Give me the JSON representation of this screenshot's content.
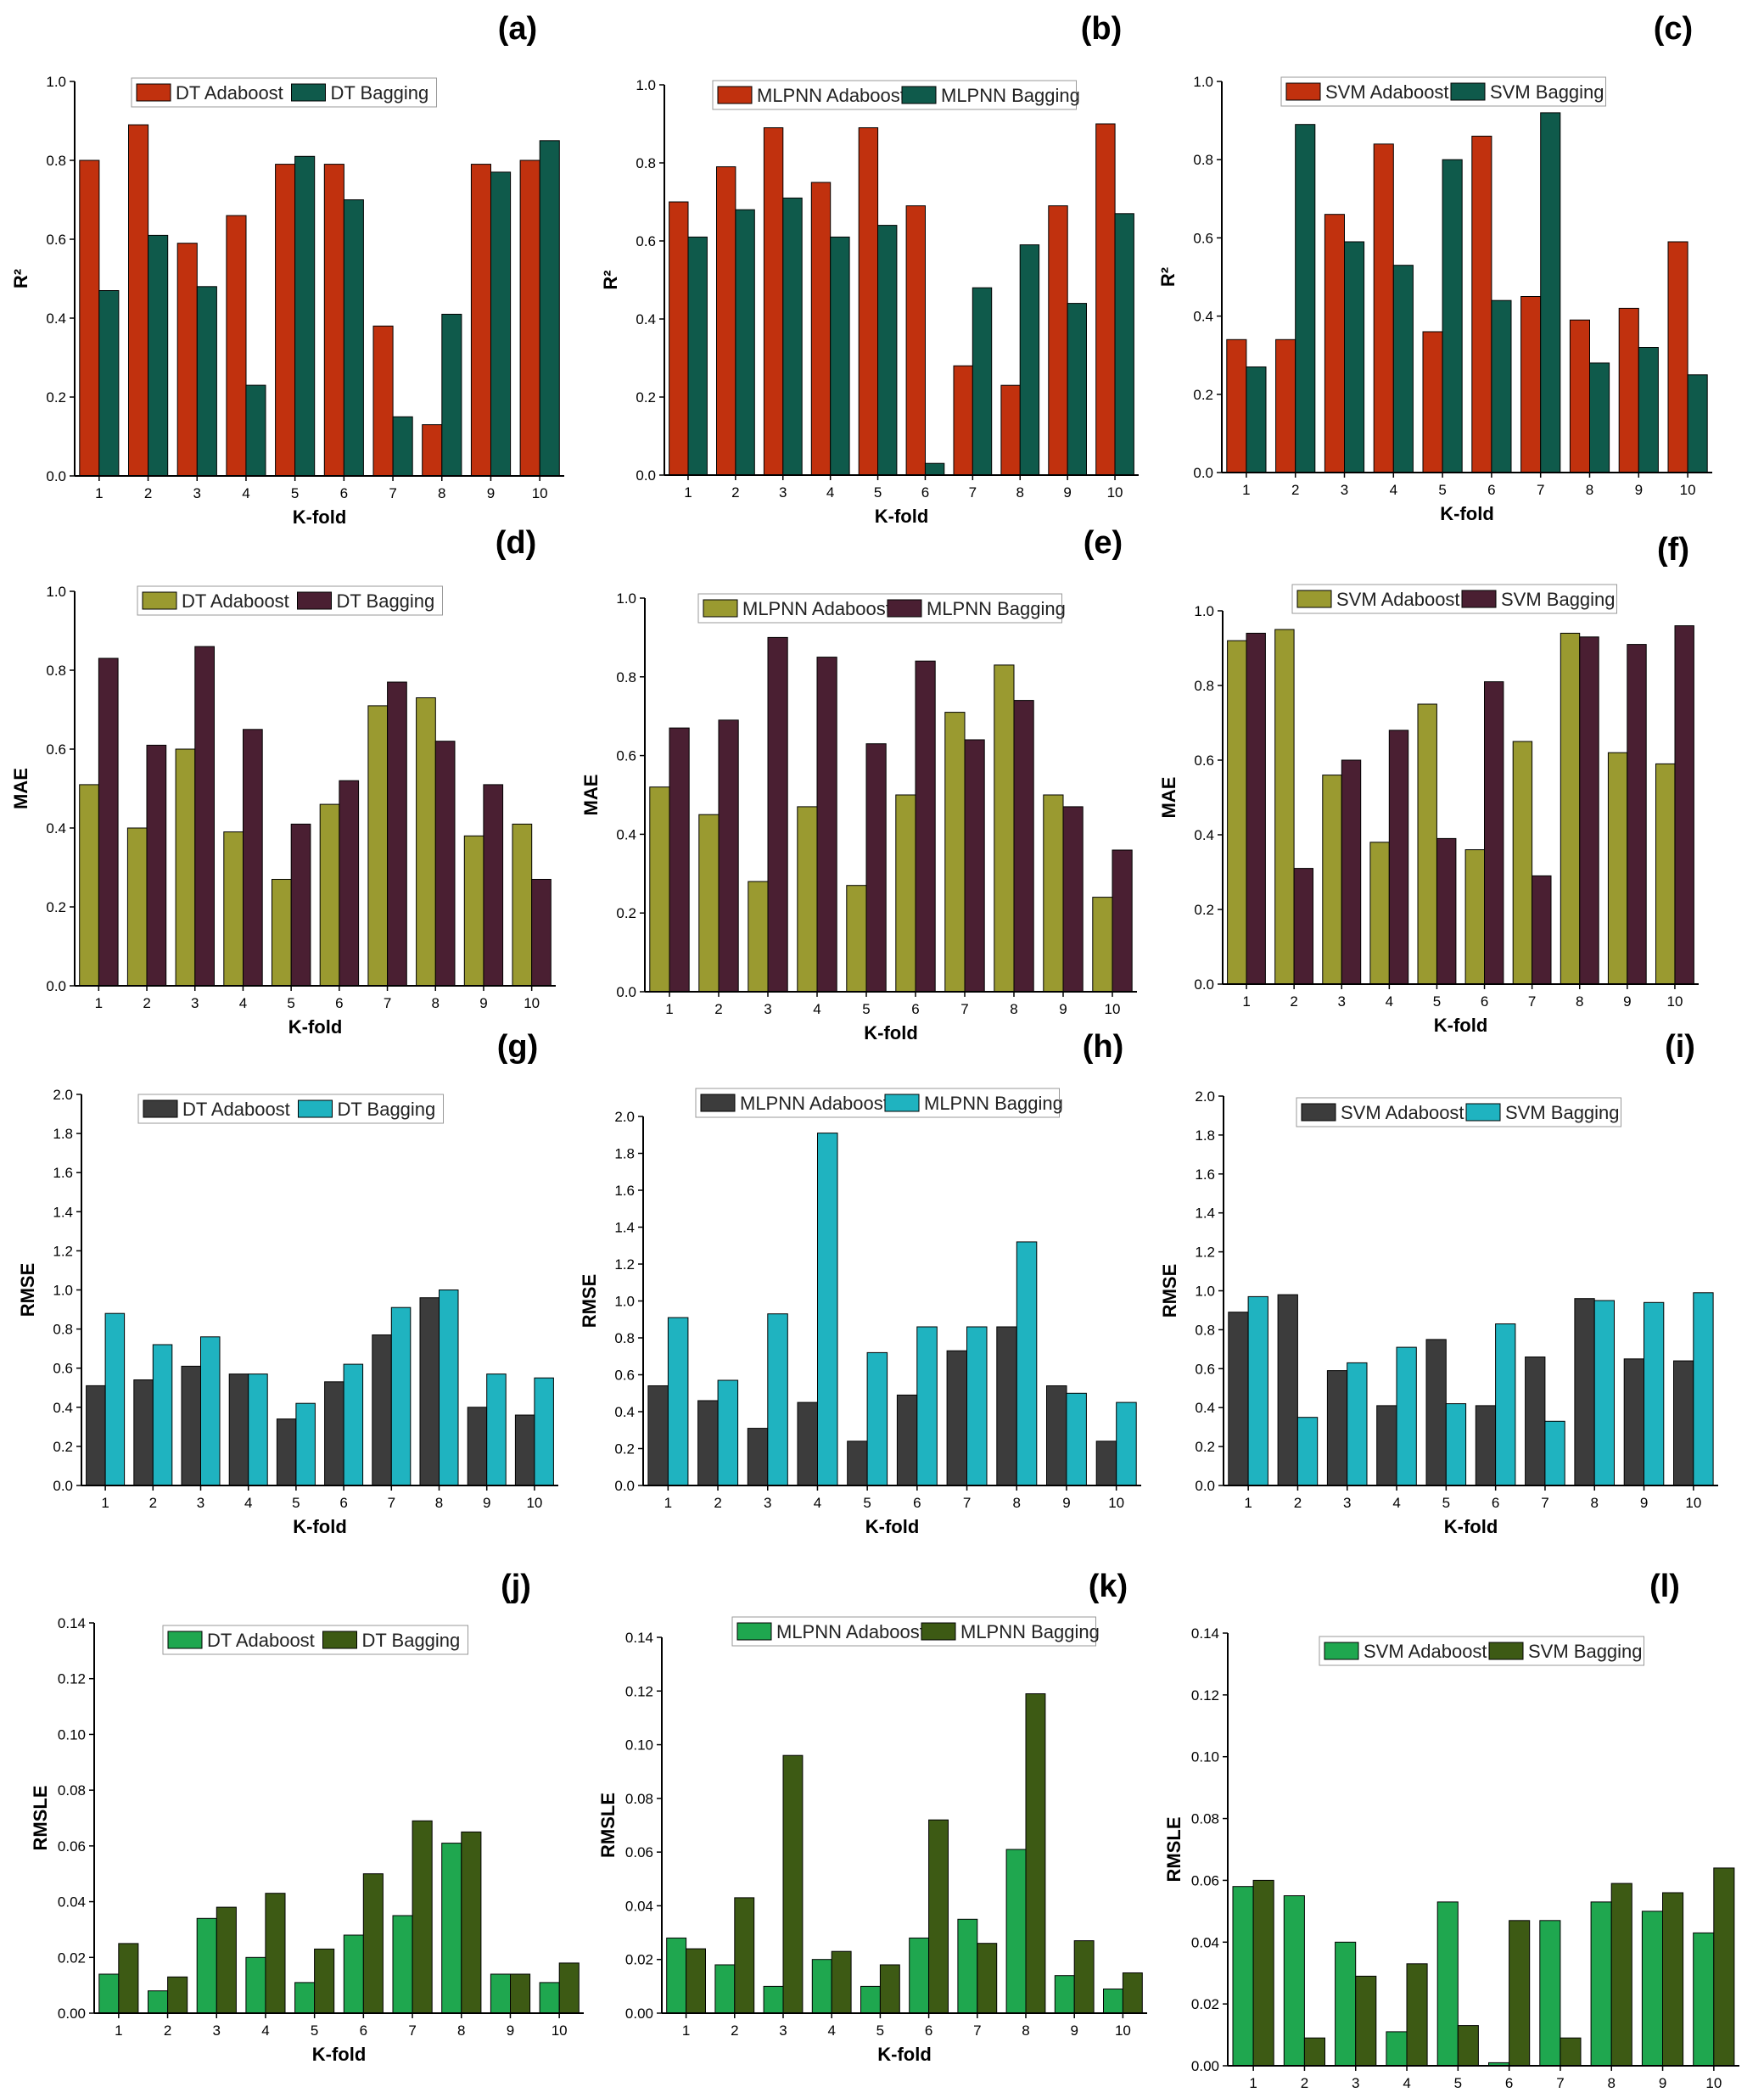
{
  "colors": {
    "r2_adaboost": "#c1310e",
    "r2_bagging": "#0f5a4b",
    "mae_adaboost": "#9a9a30",
    "mae_bagging": "#4a1f32",
    "rmse_adaboost": "#3c3c3c",
    "rmse_bagging": "#1fb3c0",
    "rmsle_adaboost": "#1fa74f",
    "rmsle_bagging": "#3d5a14"
  },
  "chart_data": [
    {
      "id": "a",
      "panel_label": "(a)",
      "type": "bar",
      "metric": "r2",
      "xlabel": "K-fold",
      "ylabel": "R²",
      "categories": [
        "1",
        "2",
        "3",
        "4",
        "5",
        "6",
        "7",
        "8",
        "9",
        "10"
      ],
      "ylim": [
        0,
        1.0
      ],
      "yticks": [
        "0.0",
        "0.2",
        "0.4",
        "0.6",
        "0.8",
        "1.0"
      ],
      "series": [
        {
          "name": "DT Adaboost",
          "values": [
            0.8,
            0.89,
            0.59,
            0.66,
            0.79,
            0.79,
            0.38,
            0.13,
            0.79,
            0.8
          ]
        },
        {
          "name": "DT Bagging",
          "values": [
            0.47,
            0.61,
            0.48,
            0.23,
            0.81,
            0.7,
            0.15,
            0.41,
            0.77,
            0.85
          ]
        }
      ]
    },
    {
      "id": "b",
      "panel_label": "(b)",
      "type": "bar",
      "metric": "r2",
      "xlabel": "K-fold",
      "ylabel": "R²",
      "categories": [
        "1",
        "2",
        "3",
        "4",
        "5",
        "6",
        "7",
        "8",
        "9",
        "10"
      ],
      "ylim": [
        0,
        1.0
      ],
      "yticks": [
        "0.0",
        "0.2",
        "0.4",
        "0.6",
        "0.8",
        "1.0"
      ],
      "series": [
        {
          "name": "MLPNN Adaboost",
          "values": [
            0.7,
            0.79,
            0.89,
            0.75,
            0.89,
            0.69,
            0.28,
            0.23,
            0.69,
            0.9
          ]
        },
        {
          "name": "MLPNN Bagging",
          "values": [
            0.61,
            0.68,
            0.71,
            0.61,
            0.64,
            0.03,
            0.48,
            0.59,
            0.44,
            0.67
          ]
        }
      ]
    },
    {
      "id": "c",
      "panel_label": "(c)",
      "type": "bar",
      "metric": "r2",
      "xlabel": "K-fold",
      "ylabel": "R²",
      "categories": [
        "1",
        "2",
        "3",
        "4",
        "5",
        "6",
        "7",
        "8",
        "9",
        "10"
      ],
      "ylim": [
        0,
        1.0
      ],
      "yticks": [
        "0.0",
        "0.2",
        "0.4",
        "0.6",
        "0.8",
        "1.0"
      ],
      "series": [
        {
          "name": "SVM Adaboost",
          "values": [
            0.34,
            0.34,
            0.66,
            0.84,
            0.36,
            0.86,
            0.45,
            0.39,
            0.42,
            0.59
          ]
        },
        {
          "name": "SVM Bagging",
          "values": [
            0.27,
            0.89,
            0.59,
            0.53,
            0.8,
            0.44,
            0.92,
            0.28,
            0.32,
            0.25
          ]
        }
      ]
    },
    {
      "id": "d",
      "panel_label": "(d)",
      "type": "bar",
      "metric": "mae",
      "xlabel": "K-fold",
      "ylabel": "MAE",
      "categories": [
        "1",
        "2",
        "3",
        "4",
        "5",
        "6",
        "7",
        "8",
        "9",
        "10"
      ],
      "ylim": [
        0,
        1.0
      ],
      "yticks": [
        "0.0",
        "0.2",
        "0.4",
        "0.6",
        "0.8",
        "1.0"
      ],
      "series": [
        {
          "name": "DT Adaboost",
          "values": [
            0.51,
            0.4,
            0.6,
            0.39,
            0.27,
            0.46,
            0.71,
            0.73,
            0.38,
            0.41
          ]
        },
        {
          "name": "DT Bagging",
          "values": [
            0.83,
            0.61,
            0.86,
            0.65,
            0.41,
            0.52,
            0.77,
            0.62,
            0.51,
            0.27
          ]
        }
      ]
    },
    {
      "id": "e",
      "panel_label": "(e)",
      "type": "bar",
      "metric": "mae",
      "xlabel": "K-fold",
      "ylabel": "MAE",
      "categories": [
        "1",
        "2",
        "3",
        "4",
        "5",
        "6",
        "7",
        "8",
        "9",
        "10"
      ],
      "ylim": [
        0,
        1.0
      ],
      "yticks": [
        "0.0",
        "0.2",
        "0.4",
        "0.6",
        "0.8",
        "1.0"
      ],
      "series": [
        {
          "name": "MLPNN Adaboost",
          "values": [
            0.52,
            0.45,
            0.28,
            0.47,
            0.27,
            0.5,
            0.71,
            0.83,
            0.5,
            0.24
          ]
        },
        {
          "name": "MLPNN Bagging",
          "values": [
            0.67,
            0.69,
            0.9,
            0.85,
            0.63,
            0.84,
            0.64,
            0.74,
            0.47,
            0.36
          ]
        }
      ]
    },
    {
      "id": "f",
      "panel_label": "(f)",
      "type": "bar",
      "metric": "mae",
      "xlabel": "K-fold",
      "ylabel": "MAE",
      "categories": [
        "1",
        "2",
        "3",
        "4",
        "5",
        "6",
        "7",
        "8",
        "9",
        "10"
      ],
      "ylim": [
        0,
        1.0
      ],
      "yticks": [
        "0.0",
        "0.2",
        "0.4",
        "0.6",
        "0.8",
        "1.0"
      ],
      "series": [
        {
          "name": "SVM Adaboost",
          "values": [
            0.92,
            0.95,
            0.56,
            0.38,
            0.75,
            0.36,
            0.65,
            0.94,
            0.62,
            0.59
          ]
        },
        {
          "name": "SVM Bagging",
          "values": [
            0.94,
            0.31,
            0.6,
            0.68,
            0.39,
            0.81,
            0.29,
            0.93,
            0.91,
            0.96
          ]
        }
      ]
    },
    {
      "id": "g",
      "panel_label": "(g)",
      "type": "bar",
      "metric": "rmse",
      "xlabel": "K-fold",
      "ylabel": "RMSE",
      "categories": [
        "1",
        "2",
        "3",
        "4",
        "5",
        "6",
        "7",
        "8",
        "9",
        "10"
      ],
      "ylim": [
        0,
        2.0
      ],
      "yticks": [
        "0.0",
        "0.2",
        "0.4",
        "0.6",
        "0.8",
        "1.0",
        "1.2",
        "1.4",
        "1.6",
        "1.8",
        "2.0"
      ],
      "series": [
        {
          "name": "DT Adaboost",
          "values": [
            0.51,
            0.54,
            0.61,
            0.57,
            0.34,
            0.53,
            0.77,
            0.96,
            0.4,
            0.36
          ]
        },
        {
          "name": "DT Bagging",
          "values": [
            0.88,
            0.72,
            0.76,
            0.57,
            0.42,
            0.62,
            0.91,
            1.0,
            0.57,
            0.55
          ]
        }
      ]
    },
    {
      "id": "h",
      "panel_label": "(h)",
      "type": "bar",
      "metric": "rmse",
      "xlabel": "K-fold",
      "ylabel": "RMSE",
      "categories": [
        "1",
        "2",
        "3",
        "4",
        "5",
        "6",
        "7",
        "8",
        "9",
        "10"
      ],
      "ylim": [
        0,
        2.0
      ],
      "yticks": [
        "0.0",
        "0.2",
        "0.4",
        "0.6",
        "0.8",
        "1.0",
        "1.2",
        "1.4",
        "1.6",
        "1.8",
        "2.0"
      ],
      "series": [
        {
          "name": "MLPNN Adaboost",
          "values": [
            0.54,
            0.46,
            0.31,
            0.45,
            0.24,
            0.49,
            0.73,
            0.86,
            0.54,
            0.24
          ]
        },
        {
          "name": "MLPNN Bagging",
          "values": [
            0.91,
            0.57,
            0.93,
            1.91,
            0.72,
            0.86,
            0.86,
            1.32,
            0.5,
            0.45
          ]
        }
      ]
    },
    {
      "id": "i",
      "panel_label": "(i)",
      "type": "bar",
      "metric": "rmse",
      "xlabel": "K-fold",
      "ylabel": "RMSE",
      "categories": [
        "1",
        "2",
        "3",
        "4",
        "5",
        "6",
        "7",
        "8",
        "9",
        "10"
      ],
      "ylim": [
        0,
        2.0
      ],
      "yticks": [
        "0.0",
        "0.2",
        "0.4",
        "0.6",
        "0.8",
        "1.0",
        "1.2",
        "1.4",
        "1.6",
        "1.8",
        "2.0"
      ],
      "series": [
        {
          "name": "SVM Adaboost",
          "values": [
            0.89,
            0.98,
            0.59,
            0.41,
            0.75,
            0.41,
            0.66,
            0.96,
            0.65,
            0.64
          ]
        },
        {
          "name": "SVM Bagging",
          "values": [
            0.97,
            0.35,
            0.63,
            0.71,
            0.42,
            0.83,
            0.33,
            0.95,
            0.94,
            0.99
          ]
        }
      ]
    },
    {
      "id": "j",
      "panel_label": "(j)",
      "type": "bar",
      "metric": "rmsle",
      "xlabel": "K-fold",
      "ylabel": "RMSLE",
      "categories": [
        "1",
        "2",
        "3",
        "4",
        "5",
        "6",
        "7",
        "8",
        "9",
        "10"
      ],
      "ylim": [
        0,
        0.14
      ],
      "yticks": [
        "0.00",
        "0.02",
        "0.04",
        "0.06",
        "0.08",
        "0.10",
        "0.12",
        "0.14"
      ],
      "series": [
        {
          "name": "DT Adaboost",
          "values": [
            0.014,
            0.008,
            0.034,
            0.02,
            0.011,
            0.028,
            0.035,
            0.061,
            0.014,
            0.011
          ]
        },
        {
          "name": "DT Bagging",
          "values": [
            0.025,
            0.013,
            0.038,
            0.043,
            0.023,
            0.05,
            0.069,
            0.065,
            0.014,
            0.018
          ]
        }
      ]
    },
    {
      "id": "k",
      "panel_label": "(k)",
      "type": "bar",
      "metric": "rmsle",
      "xlabel": "K-fold",
      "ylabel": "RMSLE",
      "categories": [
        "1",
        "2",
        "3",
        "4",
        "5",
        "6",
        "7",
        "8",
        "9",
        "10"
      ],
      "ylim": [
        0,
        0.14
      ],
      "yticks": [
        "0.00",
        "0.02",
        "0.04",
        "0.06",
        "0.08",
        "0.10",
        "0.12",
        "0.14"
      ],
      "series": [
        {
          "name": "MLPNN Adaboost",
          "values": [
            0.028,
            0.018,
            0.01,
            0.02,
            0.01,
            0.028,
            0.035,
            0.061,
            0.014,
            0.009
          ]
        },
        {
          "name": "MLPNN Bagging",
          "values": [
            0.024,
            0.043,
            0.096,
            0.023,
            0.018,
            0.072,
            0.026,
            0.119,
            0.027,
            0.015
          ]
        }
      ]
    },
    {
      "id": "l",
      "panel_label": "(l)",
      "type": "bar",
      "metric": "rmsle",
      "xlabel": "K-fold",
      "ylabel": "RMSLE",
      "categories": [
        "1",
        "2",
        "3",
        "4",
        "5",
        "6",
        "7",
        "8",
        "9",
        "10"
      ],
      "ylim": [
        0,
        0.14
      ],
      "yticks": [
        "0.00",
        "0.02",
        "0.04",
        "0.06",
        "0.08",
        "0.10",
        "0.12",
        "0.14"
      ],
      "series": [
        {
          "name": "SVM Adaboost",
          "values": [
            0.058,
            0.055,
            0.04,
            0.011,
            0.053,
            0.001,
            0.047,
            0.053,
            0.05,
            0.043
          ]
        },
        {
          "name": "SVM Bagging",
          "values": [
            0.06,
            0.009,
            0.029,
            0.033,
            0.013,
            0.047,
            0.009,
            0.059,
            0.056,
            0.064
          ]
        }
      ]
    }
  ]
}
